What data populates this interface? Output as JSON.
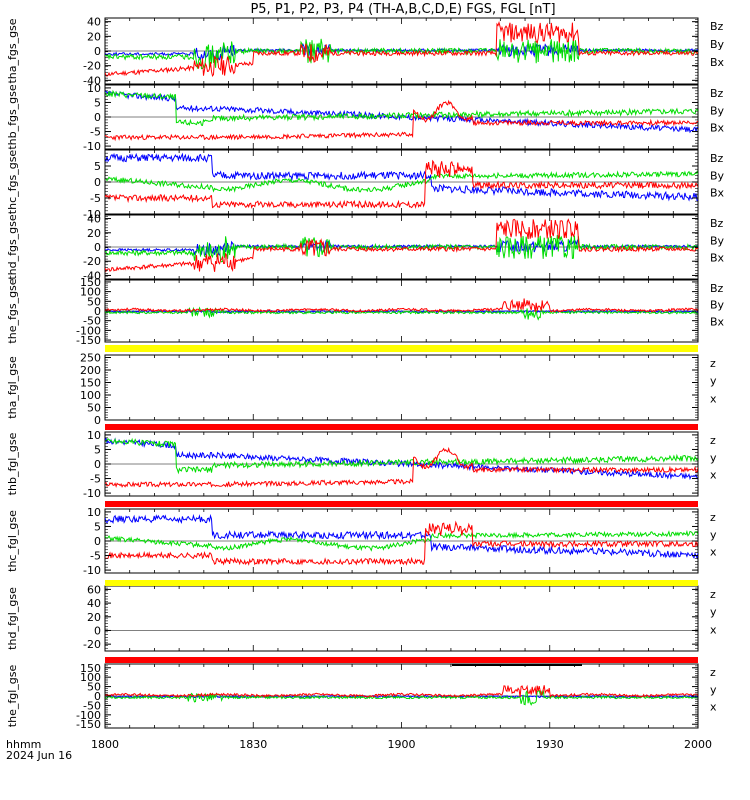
{
  "title": "P5, P1, P2, P3, P4 (TH-A,B,C,D,E) FGS, FGL [nT]",
  "footer": {
    "format": "hhmm",
    "date": "2024 Jun 16"
  },
  "colors": {
    "red": "#ff0000",
    "green": "#00dd00",
    "blue": "#0000ff",
    "yellow": "#ffff00",
    "black": "#000000"
  },
  "chart_data": {
    "type": "line",
    "x_ticks": [
      "1800",
      "1830",
      "1900",
      "1930",
      "2000"
    ],
    "x_range": [
      "18:00",
      "20:00"
    ],
    "panels": [
      {
        "ylabel": "tha_fgs_gse",
        "yrange": [
          -45,
          45
        ],
        "yticks": [
          "40",
          "20",
          "0",
          "-20",
          "-40"
        ],
        "tickvals": [
          40,
          20,
          0,
          -20,
          -40
        ],
        "legend": [
          "Bz",
          "By",
          "Bx"
        ],
        "legend_colors": [
          "red",
          "green",
          "blue"
        ],
        "bar": null,
        "kind": "fgs_big",
        "seed": 11
      },
      {
        "ylabel": "thb_fgs_gse",
        "yrange": [
          -11,
          11
        ],
        "yticks": [
          "10",
          "5",
          "0",
          "-5",
          "-10"
        ],
        "tickvals": [
          10,
          5,
          0,
          -5,
          -10
        ],
        "legend": [
          "Bz",
          "By",
          "Bx"
        ],
        "legend_colors": [
          "red",
          "green",
          "blue"
        ],
        "bar": null,
        "kind": "fgs_b",
        "seed": 23
      },
      {
        "ylabel": "thc_fgs_gse",
        "yrange": [
          -10,
          10
        ],
        "yticks": [
          "5",
          "0",
          "-5",
          "-10"
        ],
        "tickvals": [
          5,
          0,
          -5,
          -10
        ],
        "legend": [
          "Bz",
          "By",
          "Bx"
        ],
        "legend_colors": [
          "red",
          "green",
          "blue"
        ],
        "bar": null,
        "kind": "fgs_c",
        "seed": 37
      },
      {
        "ylabel": "thd_fgs_gse",
        "yrange": [
          -45,
          45
        ],
        "yticks": [
          "40",
          "20",
          "0",
          "-20",
          "-40"
        ],
        "tickvals": [
          40,
          20,
          0,
          -20,
          -40
        ],
        "legend": [
          "Bz",
          "By",
          "Bx"
        ],
        "legend_colors": [
          "red",
          "green",
          "blue"
        ],
        "bar": null,
        "kind": "fgs_big",
        "seed": 41
      },
      {
        "ylabel": "the_fgs_gse",
        "yrange": [
          -160,
          160
        ],
        "yticks": [
          "150",
          "100",
          "50",
          "0",
          "-50",
          "-100",
          "-150"
        ],
        "tickvals": [
          150,
          100,
          50,
          0,
          -50,
          -100,
          -150
        ],
        "legend": [
          "Bz",
          "By",
          "Bx"
        ],
        "legend_colors": [
          "red",
          "green",
          "blue"
        ],
        "bar": null,
        "kind": "fgs_e",
        "seed": 53
      },
      {
        "ylabel": "tha_fgl_gse",
        "yrange": [
          0,
          260
        ],
        "yticks": [
          "250",
          "200",
          "150",
          "100",
          "50",
          "0"
        ],
        "tickvals": [
          250,
          200,
          150,
          100,
          50,
          0
        ],
        "legend": [
          "z",
          "y",
          "x"
        ],
        "legend_colors": [
          "red",
          "green",
          "blue"
        ],
        "bar": "yellow",
        "kind": "empty",
        "seed": 0
      },
      {
        "ylabel": "thb_fgl_gse",
        "yrange": [
          -11,
          11
        ],
        "yticks": [
          "10",
          "5",
          "0",
          "-5",
          "-10"
        ],
        "tickvals": [
          10,
          5,
          0,
          -5,
          -10
        ],
        "legend": [
          "z",
          "y",
          "x"
        ],
        "legend_colors": [
          "red",
          "green",
          "blue"
        ],
        "bar": "red",
        "kind": "fgl_b",
        "seed": 67
      },
      {
        "ylabel": "thc_fgl_gse",
        "yrange": [
          -11,
          11
        ],
        "yticks": [
          "10",
          "5",
          "0",
          "-5",
          "-10"
        ],
        "tickvals": [
          10,
          5,
          0,
          -5,
          -10
        ],
        "legend": [
          "z",
          "y",
          "x"
        ],
        "legend_colors": [
          "red",
          "green",
          "blue"
        ],
        "bar": "red",
        "kind": "fgs_c",
        "seed": 71
      },
      {
        "ylabel": "thd_fgl_gse",
        "yrange": [
          -30,
          65
        ],
        "yticks": [
          "60",
          "40",
          "20",
          "0",
          "-20"
        ],
        "tickvals": [
          60,
          40,
          20,
          0,
          -20
        ],
        "legend": [
          "z",
          "y",
          "x"
        ],
        "legend_colors": [
          "red",
          "green",
          "blue"
        ],
        "bar": "yellow",
        "kind": "empty",
        "seed": 0
      },
      {
        "ylabel": "the_fgl_gse",
        "yrange": [
          -170,
          170
        ],
        "yticks": [
          "150",
          "100",
          "50",
          "0",
          "-50",
          "-100",
          "-150"
        ],
        "tickvals": [
          150,
          100,
          50,
          0,
          -50,
          -100,
          -150
        ],
        "legend": [
          "z",
          "y",
          "x"
        ],
        "legend_colors": [
          "red",
          "green",
          "blue"
        ],
        "bar": "red",
        "kind": "fgs_e",
        "seed": 83
      }
    ]
  }
}
